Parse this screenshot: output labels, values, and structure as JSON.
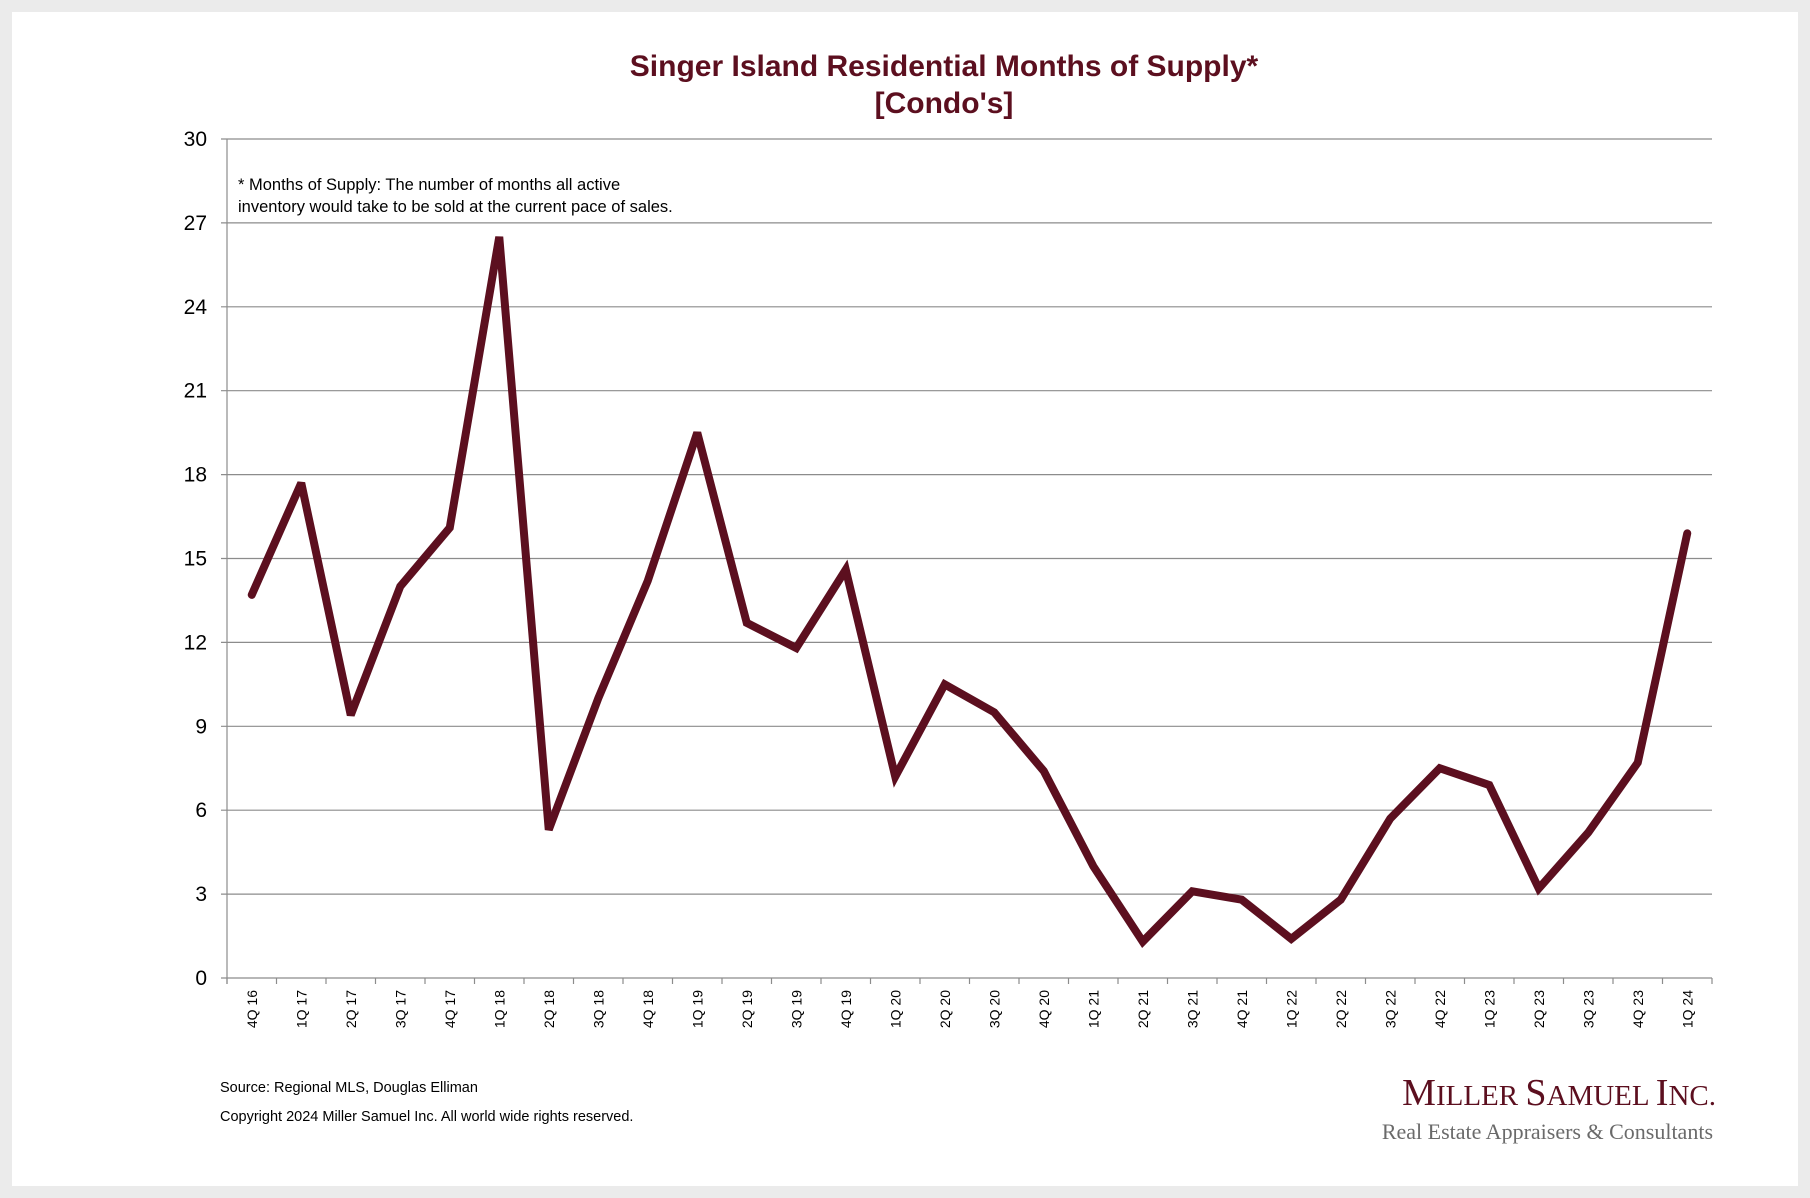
{
  "chart_data": {
    "type": "line",
    "title": "Singer Island Residential Months of Supply*",
    "subtitle": "[Condo's]",
    "xlabel": "",
    "ylabel": "",
    "ylim": [
      0,
      30
    ],
    "yticks": [
      0,
      3,
      6,
      9,
      12,
      15,
      18,
      21,
      24,
      27,
      30
    ],
    "grid": true,
    "legend": "none",
    "categories": [
      "4Q 16",
      "1Q 17",
      "2Q 17",
      "3Q 17",
      "4Q 17",
      "1Q 18",
      "2Q 18",
      "3Q 18",
      "4Q 18",
      "1Q 19",
      "2Q 19",
      "3Q 19",
      "4Q 19",
      "1Q 20",
      "2Q 20",
      "3Q 20",
      "4Q 20",
      "1Q 21",
      "2Q 21",
      "3Q 21",
      "4Q 21",
      "1Q 22",
      "2Q 22",
      "3Q 22",
      "4Q 22",
      "1Q 23",
      "2Q 23",
      "3Q 23",
      "4Q 23",
      "1Q 24"
    ],
    "series": [
      {
        "name": "Months of Supply",
        "color": "#5c0f1f",
        "values": [
          13.7,
          17.7,
          9.4,
          14.0,
          16.1,
          26.5,
          5.3,
          10.0,
          14.2,
          19.5,
          12.7,
          11.8,
          14.6,
          7.2,
          10.5,
          9.5,
          7.4,
          4.0,
          1.3,
          3.1,
          2.8,
          1.4,
          2.8,
          5.7,
          7.5,
          6.9,
          3.2,
          5.2,
          7.7,
          15.9
        ]
      }
    ],
    "annotations": [
      "* Months of Supply: The number of months all active",
      "inventory would take to be sold at the current pace of sales."
    ]
  },
  "footer": {
    "source": "Source: Regional MLS, Douglas Elliman",
    "copyright": "Copyright 2024 Miller Samuel Inc.  All world wide rights reserved."
  },
  "logo": {
    "name": "Miller Samuel Inc.",
    "tagline": "Real Estate Appraisers & Consultants"
  }
}
